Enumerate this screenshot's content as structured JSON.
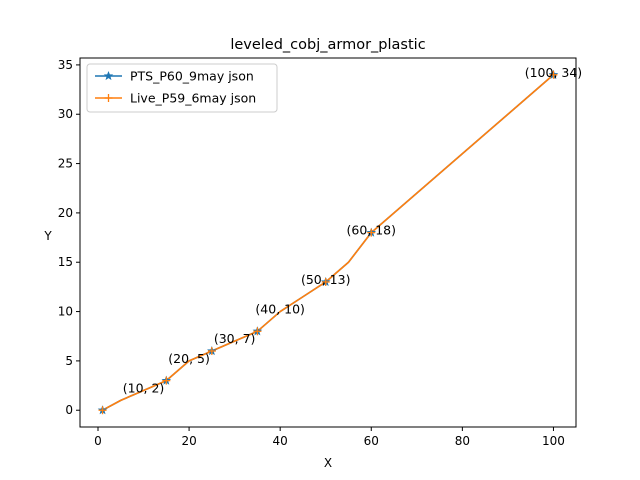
{
  "chart_data": {
    "type": "line",
    "title": "leveled_cobj_armor_plastic",
    "xlabel": "X",
    "ylabel": "Y",
    "xlim": [
      -3.95,
      104.95
    ],
    "ylim": [
      -1.7,
      35.7
    ],
    "xticks": [
      0,
      20,
      40,
      60,
      80,
      100
    ],
    "yticks": [
      0,
      5,
      10,
      15,
      20,
      25,
      30,
      35
    ],
    "grid": false,
    "legend_position": "top-left",
    "series": [
      {
        "name": "PTS_P60_9may json",
        "color": "#1f77b4",
        "marker": "star",
        "x": [
          1,
          5,
          10,
          15,
          20,
          25,
          30,
          35,
          40,
          45,
          50,
          55,
          60,
          100
        ],
        "y": [
          0,
          1,
          2,
          3,
          5,
          6,
          7,
          8,
          10,
          11.5,
          13,
          15,
          18,
          34
        ]
      },
      {
        "name": "Live_P59_6may json",
        "color": "#ff7f0e",
        "marker": "plus",
        "x": [
          1,
          5,
          10,
          15,
          20,
          25,
          30,
          35,
          40,
          45,
          50,
          55,
          60,
          100
        ],
        "y": [
          0,
          1,
          2,
          3,
          5,
          6,
          7,
          8,
          10,
          11.5,
          13,
          15,
          18,
          34
        ]
      }
    ],
    "annotations": [
      {
        "label": "(10, 2)",
        "x": 10,
        "y": 2
      },
      {
        "label": "(20, 5)",
        "x": 20,
        "y": 5
      },
      {
        "label": "(30, 7)",
        "x": 30,
        "y": 7
      },
      {
        "label": "(40, 10)",
        "x": 40,
        "y": 10
      },
      {
        "label": "(50, 13)",
        "x": 50,
        "y": 13
      },
      {
        "label": "(60, 18)",
        "x": 60,
        "y": 18
      },
      {
        "label": "(100, 34)",
        "x": 100,
        "y": 34
      }
    ],
    "marked_points": [
      {
        "x": 1,
        "y": 0
      },
      {
        "x": 15,
        "y": 3
      },
      {
        "x": 25,
        "y": 6
      },
      {
        "x": 35,
        "y": 8
      },
      {
        "x": 50,
        "y": 13
      },
      {
        "x": 60,
        "y": 18
      },
      {
        "x": 100,
        "y": 34
      }
    ]
  }
}
